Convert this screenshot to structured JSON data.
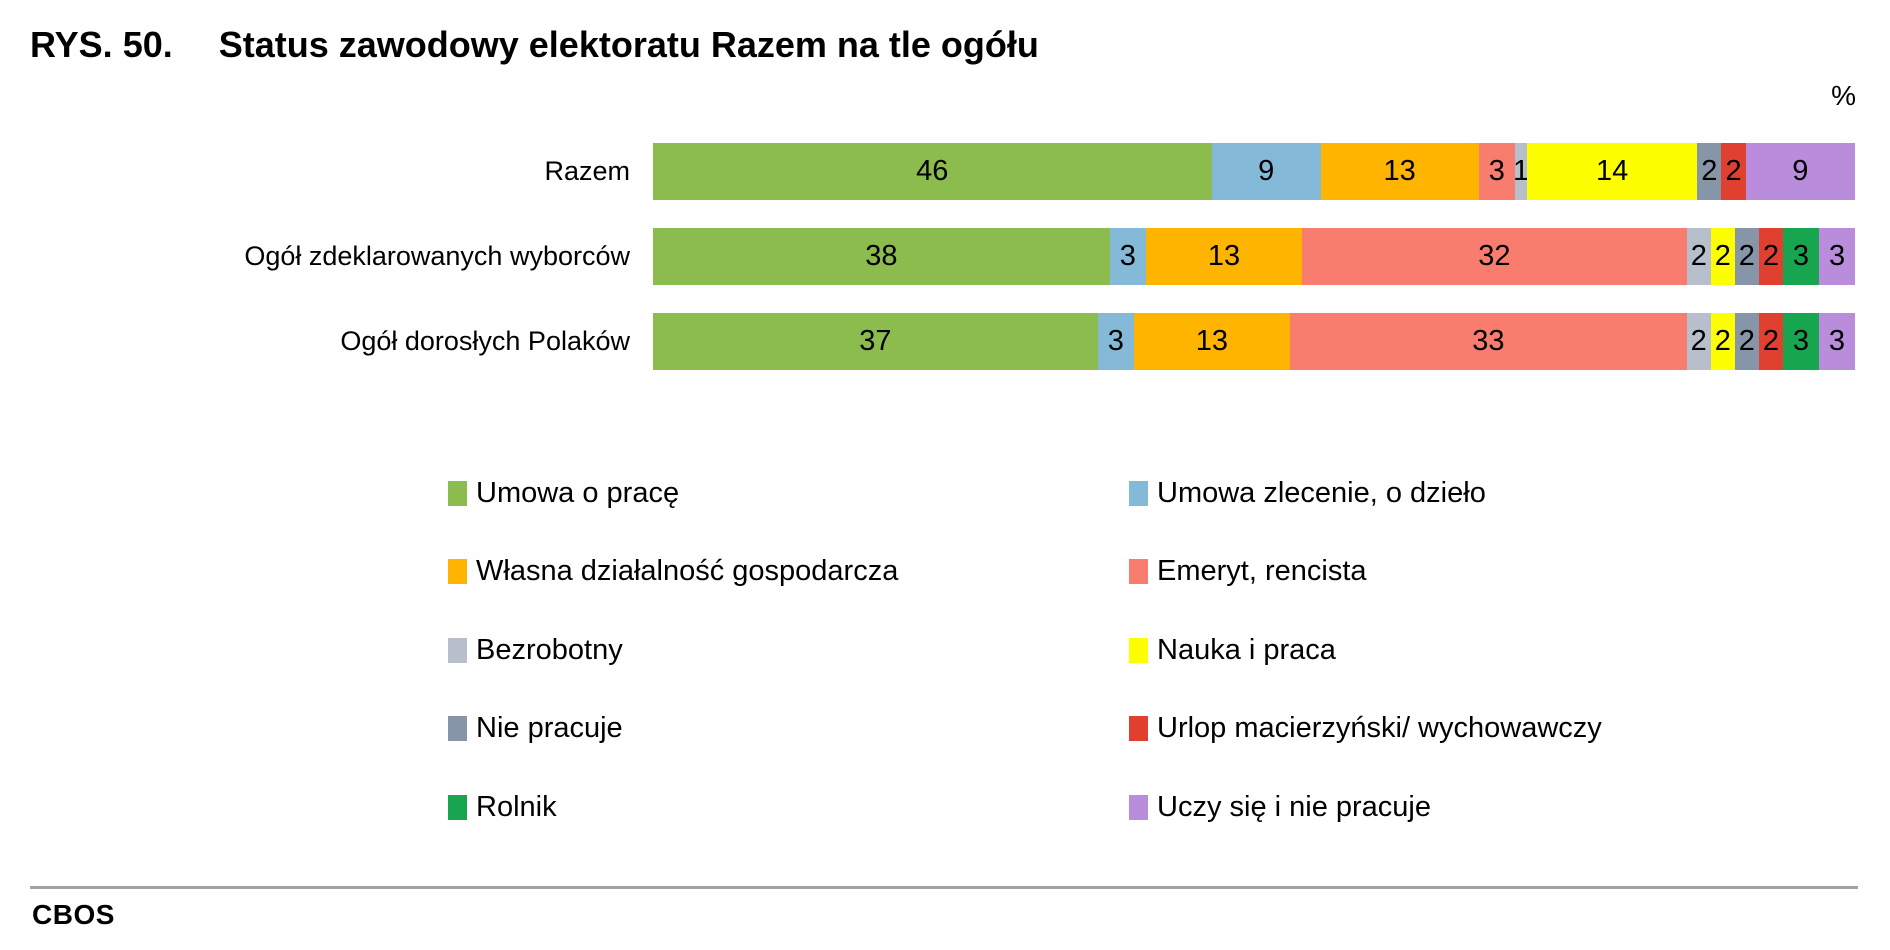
{
  "title": {
    "prefix": "RYS. 50.",
    "text": "Status zawodowy elektoratu Razem na tle ogółu"
  },
  "unit_label": "%",
  "source_label": "CBOS",
  "chart_data": {
    "type": "bar",
    "variant": "horizontal-stacked",
    "unit": "%",
    "xlim": [
      0,
      100
    ],
    "grid": false,
    "legend_position": "bottom-two-columns",
    "categories": [
      "Razem",
      "Ogół zdeklarowanych wyborców",
      "Ogół dorosłych Polaków"
    ],
    "series": [
      {
        "name": "Umowa o pracę",
        "color": "#8CBB4E",
        "values": [
          46,
          38,
          37
        ]
      },
      {
        "name": "Umowa zlecenie, o dzieło",
        "color": "#84B9D8",
        "values": [
          9,
          3,
          3
        ]
      },
      {
        "name": "Własna działalność gospodarcza",
        "color": "#FFB400",
        "values": [
          13,
          13,
          13
        ]
      },
      {
        "name": "Emeryt, rencista",
        "color": "#F87D6E",
        "values": [
          3,
          32,
          33
        ]
      },
      {
        "name": "Bezrobotny",
        "color": "#B6BFCB",
        "values": [
          1,
          2,
          2
        ]
      },
      {
        "name": "Nauka i praca",
        "color": "#FDFF00",
        "values": [
          14,
          2,
          2
        ]
      },
      {
        "name": "Nie pracuje",
        "color": "#8695A8",
        "values": [
          2,
          2,
          2
        ]
      },
      {
        "name": "Urlop macierzyński/ wychowawczy",
        "color": "#DF4030",
        "values": [
          2,
          2,
          2
        ]
      },
      {
        "name": "Rolnik",
        "color": "#17A64F",
        "values": [
          0,
          3,
          3
        ]
      },
      {
        "name": "Uczy się i nie pracuje",
        "color": "#B98DDC",
        "values": [
          9,
          3,
          3
        ]
      }
    ],
    "legend_column_order": [
      [
        0,
        2,
        4,
        6,
        8
      ],
      [
        1,
        3,
        5,
        7,
        9
      ]
    ]
  }
}
